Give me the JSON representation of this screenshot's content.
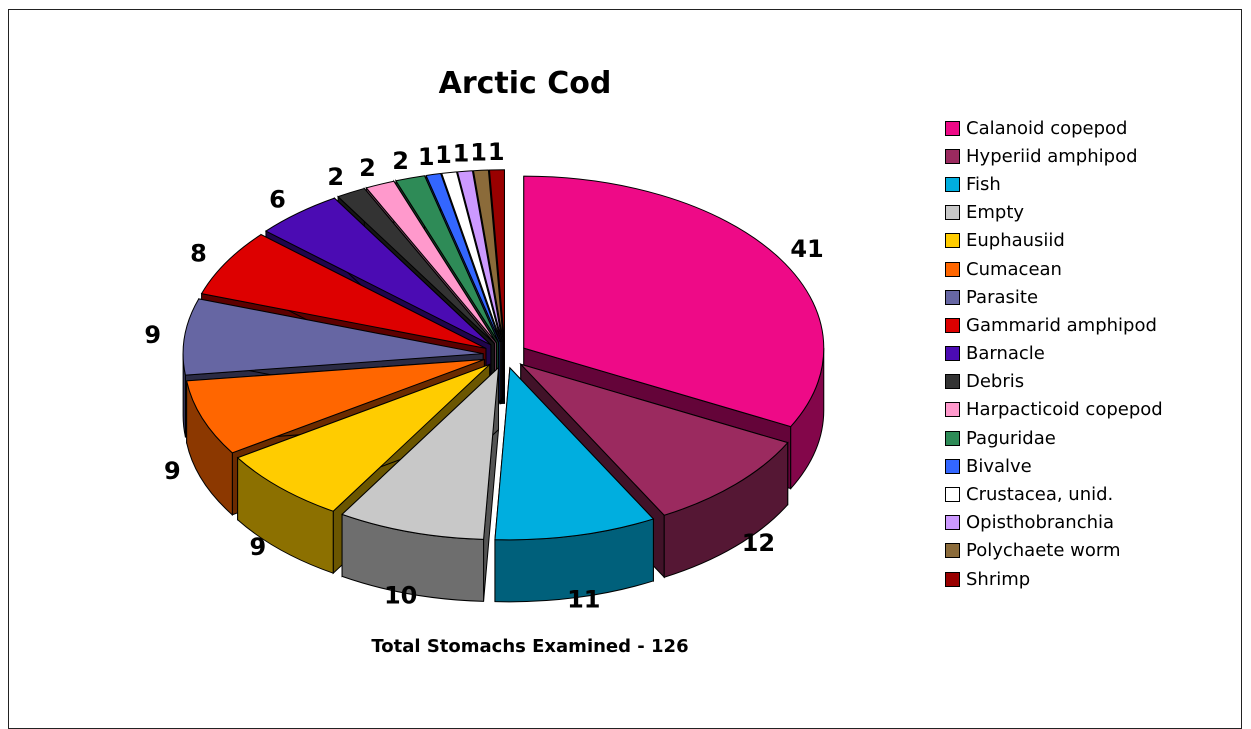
{
  "chart_data": {
    "type": "pie",
    "title": "Arctic Cod",
    "footer": "Total Stomachs Examined - 126",
    "legend_position": "right",
    "slices": [
      {
        "label": "Calanoid copepod",
        "value": 41,
        "color": "#EE0A87"
      },
      {
        "label": "Hyperiid amphipod",
        "value": 12,
        "color": "#9B2A5F"
      },
      {
        "label": "Fish",
        "value": 11,
        "color": "#00AEDF"
      },
      {
        "label": "Empty",
        "value": 10,
        "color": "#C8C8C8"
      },
      {
        "label": "Euphausiid",
        "value": 9,
        "color": "#FFCC00"
      },
      {
        "label": "Cumacean",
        "value": 9,
        "color": "#FF6600"
      },
      {
        "label": "Parasite",
        "value": 9,
        "color": "#6666A3"
      },
      {
        "label": "Gammarid amphipod",
        "value": 8,
        "color": "#DD0000"
      },
      {
        "label": "Barnacle",
        "value": 6,
        "color": "#4B0BB3"
      },
      {
        "label": "Debris",
        "value": 2,
        "color": "#333333"
      },
      {
        "label": "Harpacticoid copepod",
        "value": 2,
        "color": "#FF99CC"
      },
      {
        "label": "Paguridae",
        "value": 2,
        "color": "#2E8B57"
      },
      {
        "label": "Bivalve",
        "value": 1,
        "color": "#3366FF"
      },
      {
        "label": "Crustacea, unid.",
        "value": 1,
        "color": "#FFFFFF"
      },
      {
        "label": "Opisthobranchia",
        "value": 1,
        "color": "#CC99FF"
      },
      {
        "label": "Polychaete worm",
        "value": 1,
        "color": "#8B6B3A"
      },
      {
        "label": "Shrimp",
        "value": 1,
        "color": "#990000"
      }
    ]
  }
}
